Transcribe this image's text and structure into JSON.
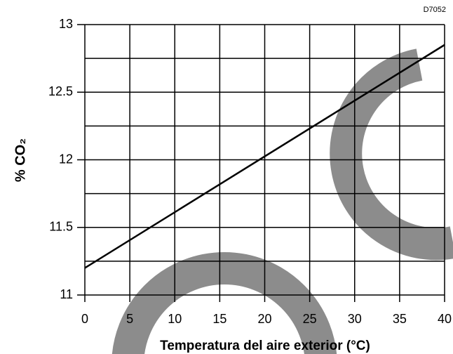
{
  "chart_data": {
    "type": "line",
    "annotation": "D7052",
    "x_label": "Temperatura del aire exterior (°C)",
    "y_label": "% CO₂",
    "x": [
      0,
      40
    ],
    "series": [
      {
        "values": [
          11.2,
          12.85
        ],
        "color": "#000000"
      }
    ],
    "xlim": [
      0,
      40
    ],
    "xticks": [
      0,
      5,
      10,
      15,
      20,
      25,
      30,
      35,
      40
    ],
    "ylim": [
      11,
      13
    ],
    "yticks": [
      11,
      11.5,
      12,
      12.5,
      13
    ],
    "minor_yticks": [
      11.25,
      11.75,
      12.25,
      12.75
    ],
    "grid": true
  }
}
